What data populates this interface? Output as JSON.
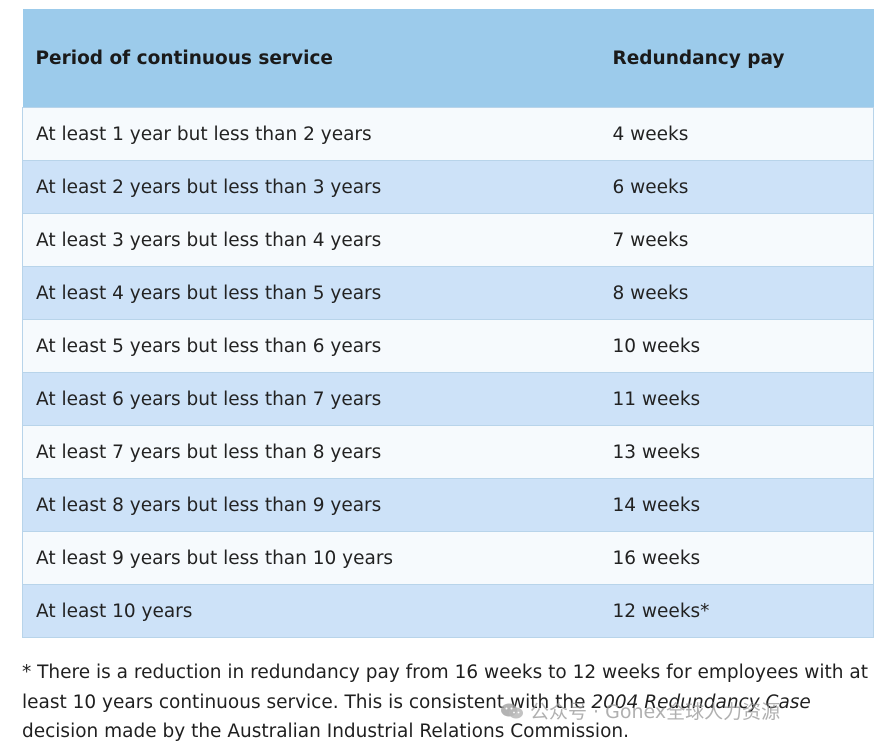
{
  "table": {
    "headers": {
      "period": "Period of continuous service",
      "pay": "Redundancy pay"
    },
    "rows": [
      {
        "period": "At least 1 year but less than 2 years",
        "pay": "4 weeks"
      },
      {
        "period": "At least 2 years but less than 3 years",
        "pay": "6 weeks"
      },
      {
        "period": "At least 3 years but less than 4 years",
        "pay": "7 weeks"
      },
      {
        "period": "At least 4 years but less than 5 years",
        "pay": "8 weeks"
      },
      {
        "period": "At least 5 years but less than 6 years",
        "pay": "10 weeks"
      },
      {
        "period": "At least 6 years but less than 7 years",
        "pay": "11 weeks"
      },
      {
        "period": "At least 7 years but less than 8 years",
        "pay": "13 weeks"
      },
      {
        "period": "At least 8 years but less than 9 years",
        "pay": "14 weeks"
      },
      {
        "period": "At least 9 years but less than 10 years",
        "pay": "16 weeks"
      },
      {
        "period": "At least 10 years",
        "pay": "12 weeks*"
      }
    ]
  },
  "footnote": {
    "part1": "* There is a reduction in redundancy pay from 16 weeks to 12 weeks for employees with at least 10 years continuous service. This is consistent with the ",
    "case_name": "2004 Redundancy Case",
    "part2": " decision made by the Australian Industrial Relations Commission."
  },
  "watermark": {
    "text": "公众号 · Gonex全球人力资源",
    "icon": "wechat-icon"
  },
  "colors": {
    "header_bg": "#9ccbeb",
    "row_light": "#f6fafd",
    "row_blue": "#cde2f8",
    "border": "#b8d4ea"
  }
}
